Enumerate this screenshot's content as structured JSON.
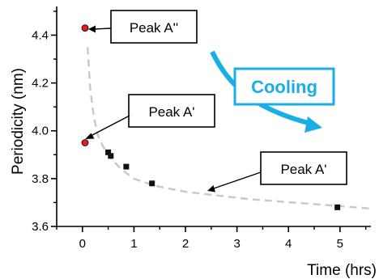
{
  "chart_data": {
    "type": "scatter",
    "title": "",
    "xlabel": "Time (hrs)",
    "ylabel": "Periodicity (nm)",
    "xlim": [
      -0.5,
      5.6
    ],
    "ylim": [
      3.6,
      4.52
    ],
    "xticks": [
      0,
      1,
      2,
      3,
      4,
      5
    ],
    "yticks": [
      3.6,
      3.8,
      4.0,
      4.2,
      4.4
    ],
    "xtick_labels": [
      "0",
      "1",
      "2",
      "3",
      "4",
      "5"
    ],
    "ytick_labels": [
      "3.6",
      "3.8",
      "4.0",
      "4.2",
      "4.4"
    ],
    "grid": false,
    "series": [
      {
        "marker": "circle",
        "color": "#e02020",
        "points": [
          {
            "x": 0.05,
            "y": 4.43
          },
          {
            "x": 0.05,
            "y": 3.95
          }
        ]
      },
      {
        "marker": "square",
        "color": "#111111",
        "points": [
          {
            "x": 0.5,
            "y": 3.91
          },
          {
            "x": 0.55,
            "y": 3.895
          },
          {
            "x": 0.85,
            "y": 3.85
          },
          {
            "x": 1.35,
            "y": 3.78
          },
          {
            "x": 4.95,
            "y": 3.68
          }
        ]
      },
      {
        "style": "dashed-line",
        "color": "#c8c8c8",
        "points": [
          {
            "x": 0.1,
            "y": 4.35
          },
          {
            "x": 0.15,
            "y": 4.18
          },
          {
            "x": 0.22,
            "y": 4.06
          },
          {
            "x": 0.3,
            "y": 3.98
          },
          {
            "x": 0.4,
            "y": 3.935
          },
          {
            "x": 0.55,
            "y": 3.885
          },
          {
            "x": 0.75,
            "y": 3.84
          },
          {
            "x": 1.0,
            "y": 3.8
          },
          {
            "x": 1.4,
            "y": 3.77
          },
          {
            "x": 2.0,
            "y": 3.745
          },
          {
            "x": 2.6,
            "y": 3.73
          },
          {
            "x": 3.2,
            "y": 3.715
          },
          {
            "x": 3.8,
            "y": 3.705
          },
          {
            "x": 4.4,
            "y": 3.695
          },
          {
            "x": 5.0,
            "y": 3.685
          },
          {
            "x": 5.6,
            "y": 3.675
          }
        ]
      }
    ],
    "annotations": [
      {
        "text": "Peak A''",
        "points_to": {
          "x": 0.05,
          "y": 4.43
        }
      },
      {
        "text": "Peak A'",
        "points_to": {
          "x": 0.05,
          "y": 3.95
        }
      },
      {
        "text": "Peak A'",
        "points_to": {
          "x": 2.45,
          "y": 3.735
        }
      }
    ],
    "callout": {
      "text": "Cooling",
      "color": "#1aaee6"
    }
  }
}
